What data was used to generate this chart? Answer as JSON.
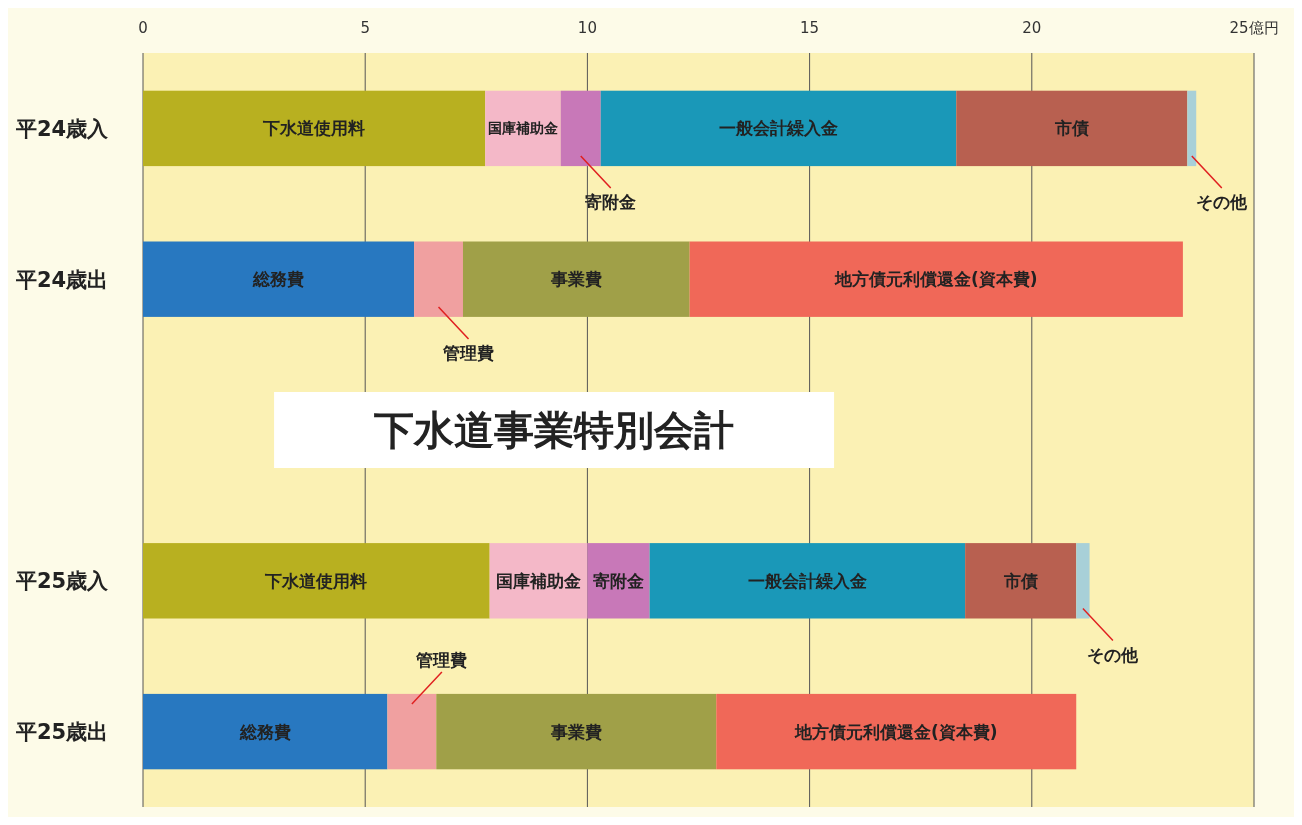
{
  "chart_data": {
    "type": "bar",
    "orientation": "horizontal",
    "stacked": true,
    "title": "下水道事業特別会計",
    "categories": [
      "平24歳入",
      "平24歳出",
      null,
      "平25歳入",
      "平25歳出"
    ],
    "series": [
      {
        "name": "下水道使用料",
        "color": "#b8b020",
        "values": [
          7.7,
          null,
          null,
          7.8,
          null
        ]
      },
      {
        "name": "国庫補助金",
        "color": "#f4b8c8",
        "values": [
          1.7,
          null,
          null,
          2.2,
          null
        ]
      },
      {
        "name": "寄附金",
        "color": "#c878b8",
        "values": [
          0.9,
          null,
          null,
          1.4,
          null
        ]
      },
      {
        "name": "一般会計繰入金",
        "color": "#1a98b8",
        "values": [
          8.0,
          null,
          null,
          7.1,
          null
        ]
      },
      {
        "name": "市債",
        "color": "#b86050",
        "values": [
          5.2,
          null,
          null,
          2.5,
          null
        ]
      },
      {
        "name": "その他",
        "color": "#a8d0d8",
        "values": [
          0.2,
          null,
          null,
          0.3,
          null
        ]
      },
      {
        "name": "総務費",
        "color": "#2878c0",
        "values": [
          null,
          6.1,
          null,
          null,
          5.5
        ]
      },
      {
        "name": "管理費",
        "color": "#f0a0a0",
        "values": [
          null,
          1.1,
          null,
          null,
          1.1
        ]
      },
      {
        "name": "事業費",
        "color": "#a0a048",
        "values": [
          null,
          5.1,
          null,
          null,
          6.3
        ]
      },
      {
        "name": "地方債元利償還金(資本費)",
        "color": "#f06858",
        "values": [
          null,
          11.1,
          null,
          null,
          8.1
        ]
      }
    ],
    "xlim": [
      0,
      25
    ],
    "xticks": [
      0,
      5,
      10,
      15,
      20,
      {
        "value": 25,
        "label": "25億円"
      }
    ],
    "grid": "x"
  }
}
